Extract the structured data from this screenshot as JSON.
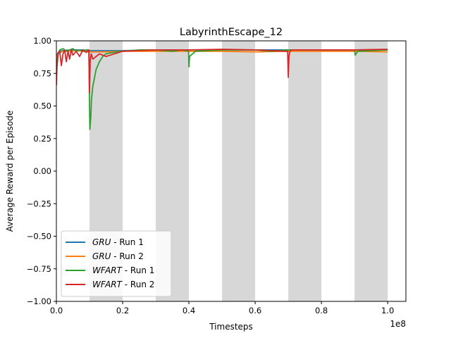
{
  "chart_data": {
    "type": "line",
    "title": "LabyrinthEscape_12",
    "xlabel": "Timesteps",
    "ylabel": "Average Reward per Episode",
    "x_offset_label": "1e8",
    "xlim": [
      0,
      1.055
    ],
    "ylim": [
      -1.0,
      1.0
    ],
    "x_ticks": [
      0.0,
      0.2,
      0.4,
      0.6,
      0.8,
      1.0
    ],
    "x_tick_labels": [
      "0.0",
      "0.2",
      "0.4",
      "0.6",
      "0.8",
      "1.0"
    ],
    "y_ticks": [
      -1.0,
      -0.75,
      -0.5,
      -0.25,
      0.0,
      0.25,
      0.5,
      0.75,
      1.0
    ],
    "y_tick_labels": [
      "−1.00",
      "−0.75",
      "−0.50",
      "−0.25",
      "0.00",
      "0.25",
      "0.50",
      "0.75",
      "1.00"
    ],
    "grid": false,
    "shaded_regions": [
      [
        0.1,
        0.2
      ],
      [
        0.3,
        0.4
      ],
      [
        0.5,
        0.6
      ],
      [
        0.7,
        0.8
      ],
      [
        0.9,
        1.0
      ]
    ],
    "legend": {
      "placement": "lower-left",
      "entries": [
        {
          "model": "GRU",
          "suffix": " - Run 1"
        },
        {
          "model": "GRU",
          "suffix": " - Run 2"
        },
        {
          "model": "WFART",
          "suffix": " - Run 1"
        },
        {
          "model": "WFART",
          "suffix": " - Run 2"
        }
      ]
    },
    "series": [
      {
        "name": "GRU - Run 1",
        "color": "#1f77b4",
        "x": [
          0,
          0.005,
          0.01,
          0.02,
          0.04,
          0.06,
          0.08,
          0.1,
          0.15,
          0.2,
          0.3,
          0.4,
          0.5,
          0.6,
          0.7,
          0.8,
          0.9,
          1.0
        ],
        "y": [
          0.88,
          0.91,
          0.92,
          0.925,
          0.93,
          0.93,
          0.93,
          0.925,
          0.925,
          0.925,
          0.93,
          0.93,
          0.93,
          0.93,
          0.93,
          0.93,
          0.93,
          0.93
        ]
      },
      {
        "name": "GRU - Run 2",
        "color": "#ff7f0e",
        "x": [
          0,
          0.005,
          0.01,
          0.02,
          0.04,
          0.06,
          0.08,
          0.1,
          0.15,
          0.2,
          0.3,
          0.4,
          0.5,
          0.6,
          0.7,
          0.8,
          0.9,
          1.0
        ],
        "y": [
          0.87,
          0.9,
          0.91,
          0.92,
          0.92,
          0.925,
          0.92,
          0.915,
          0.915,
          0.92,
          0.92,
          0.92,
          0.92,
          0.915,
          0.92,
          0.92,
          0.92,
          0.915
        ]
      },
      {
        "name": "WFART - Run 1",
        "color": "#2ca02c",
        "x": [
          0,
          0.005,
          0.01,
          0.02,
          0.03,
          0.04,
          0.05,
          0.06,
          0.07,
          0.08,
          0.09,
          0.098,
          0.1,
          0.101,
          0.104,
          0.106,
          0.11,
          0.12,
          0.13,
          0.14,
          0.15,
          0.17,
          0.2,
          0.25,
          0.3,
          0.35,
          0.38,
          0.399,
          0.4,
          0.402,
          0.42,
          0.5,
          0.6,
          0.65,
          0.7,
          0.8,
          0.9,
          0.902,
          0.91,
          1.0
        ],
        "y": [
          0.8,
          0.9,
          0.93,
          0.94,
          0.92,
          0.93,
          0.94,
          0.92,
          0.93,
          0.92,
          0.93,
          0.93,
          0.5,
          0.32,
          0.42,
          0.55,
          0.65,
          0.78,
          0.84,
          0.88,
          0.9,
          0.91,
          0.92,
          0.93,
          0.93,
          0.92,
          0.93,
          0.92,
          0.8,
          0.88,
          0.92,
          0.93,
          0.93,
          0.92,
          0.93,
          0.93,
          0.93,
          0.89,
          0.92,
          0.93
        ]
      },
      {
        "name": "WFART - Run 2",
        "color": "#d62728",
        "x": [
          0,
          0.002,
          0.005,
          0.01,
          0.015,
          0.02,
          0.025,
          0.03,
          0.035,
          0.04,
          0.045,
          0.05,
          0.06,
          0.07,
          0.08,
          0.09,
          0.098,
          0.1,
          0.102,
          0.105,
          0.11,
          0.13,
          0.15,
          0.2,
          0.3,
          0.4,
          0.5,
          0.6,
          0.698,
          0.7,
          0.702,
          0.705,
          0.71,
          0.8,
          0.9,
          1.0
        ],
        "y": [
          0.66,
          0.8,
          0.9,
          0.92,
          0.81,
          0.9,
          0.93,
          0.84,
          0.92,
          0.86,
          0.93,
          0.89,
          0.92,
          0.88,
          0.93,
          0.91,
          0.93,
          0.6,
          0.85,
          0.9,
          0.86,
          0.9,
          0.88,
          0.92,
          0.93,
          0.93,
          0.935,
          0.93,
          0.92,
          0.72,
          0.88,
          0.92,
          0.93,
          0.93,
          0.93,
          0.935
        ]
      }
    ]
  }
}
